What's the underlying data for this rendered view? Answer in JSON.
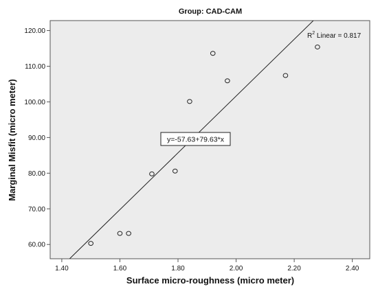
{
  "chart_data": {
    "type": "scatter",
    "title": "Group: CAD-CAM",
    "xlabel": "Surface micro-roughness (micro meter)",
    "ylabel": "Marginal Misfit (micro meter)",
    "xlim": [
      1.36,
      2.46
    ],
    "ylim": [
      56.0,
      122.8
    ],
    "xticks": [
      "1.40",
      "1.60",
      "1.80",
      "2.00",
      "2.20",
      "2.40"
    ],
    "yticks": [
      "60.00",
      "70.00",
      "80.00",
      "90.00",
      "100.00",
      "110.00",
      "120.00"
    ],
    "points": [
      {
        "x": 1.5,
        "y": 60.3
      },
      {
        "x": 1.6,
        "y": 63.1
      },
      {
        "x": 1.63,
        "y": 63.1
      },
      {
        "x": 1.71,
        "y": 79.8
      },
      {
        "x": 1.79,
        "y": 80.6
      },
      {
        "x": 1.84,
        "y": 100.1
      },
      {
        "x": 1.92,
        "y": 113.6
      },
      {
        "x": 1.97,
        "y": 105.9
      },
      {
        "x": 2.17,
        "y": 107.4
      },
      {
        "x": 2.28,
        "y": 115.4
      }
    ],
    "fit_line": {
      "intercept": -57.63,
      "slope": 79.63
    },
    "equation_label": "y=-57.63+79.63*x",
    "r2_label_prefix": "R",
    "r2_label_superscript": "2",
    "r2_label_suffix": " Linear = 0.817",
    "grid": false,
    "plot_background": "#ececec",
    "marker_color": "#222222",
    "line_color": "#222222"
  }
}
